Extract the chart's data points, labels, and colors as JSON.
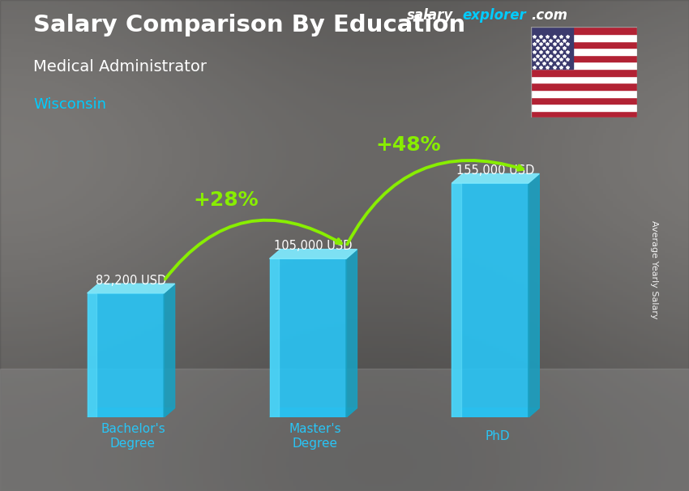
{
  "title_line1": "Salary Comparison By Education",
  "subtitle": "Medical Administrator",
  "location": "Wisconsin",
  "categories": [
    "Bachelor's\nDegree",
    "Master's\nDegree",
    "PhD"
  ],
  "values": [
    82200,
    105000,
    155000
  ],
  "value_labels": [
    "82,200 USD",
    "105,000 USD",
    "155,000 USD"
  ],
  "pct_labels": [
    "+28%",
    "+48%"
  ],
  "bar_face_color": "#29c5f6",
  "bar_side_color": "#1a9fc0",
  "bar_top_color": "#7fe8fc",
  "bg_color": "#888888",
  "title_color": "#ffffff",
  "subtitle_color": "#ffffff",
  "location_color": "#00ccff",
  "label_color": "#ffffff",
  "cat_label_color": "#29c5f6",
  "pct_color": "#88ee00",
  "arrow_color": "#88ee00",
  "ylabel": "Average Yearly Salary",
  "brand_salary": "salary",
  "brand_explorer": "explorer",
  "brand_com": ".com",
  "brand_salary_color": "#ffffff",
  "brand_explorer_color": "#00ccff",
  "brand_com_color": "#ffffff",
  "ylim": [
    0,
    195000
  ],
  "figsize": [
    8.5,
    6.06
  ],
  "dpi": 100
}
